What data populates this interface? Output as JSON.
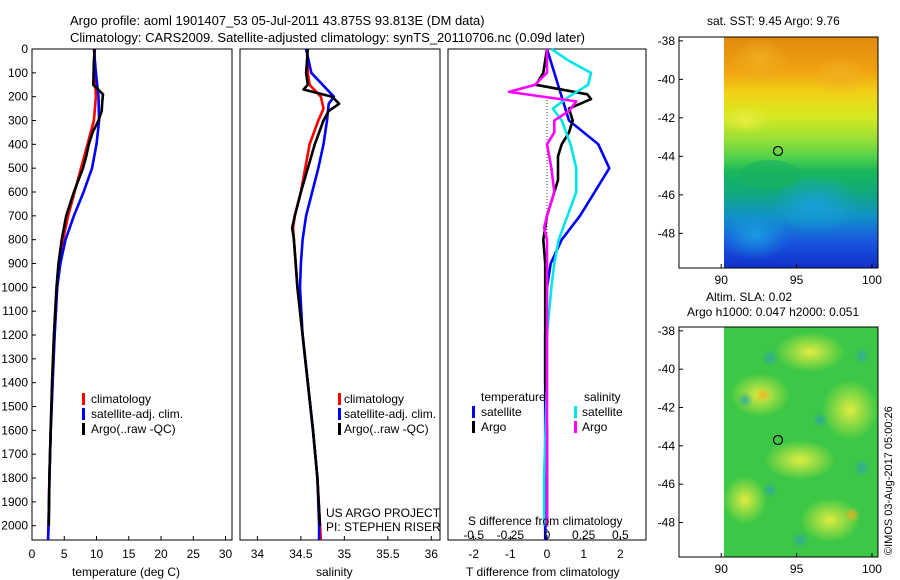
{
  "title_line1": "Argo profile: aoml 1901407_53 05-Jul-2011 43.875S 93.813E (DM data)",
  "title_line2": "Climatology: CARS2009. Satellite-adjusted climatology: synTS_20110706.nc (0.09d later)",
  "colors": {
    "climatology": "#ff0000",
    "satellite": "#0000ff",
    "argo": "#000000",
    "sal_satellite": "#00e5e5",
    "sal_argo": "#ff00ff"
  },
  "chart_data": [
    {
      "type": "line",
      "panel": "temperature",
      "xlabel": "temperature (deg C)",
      "xlim": [
        0,
        31
      ],
      "xticks": [
        0,
        5,
        10,
        15,
        20,
        25,
        30
      ],
      "ylim": [
        2060,
        0
      ],
      "yticks": [
        0,
        100,
        200,
        300,
        400,
        500,
        600,
        700,
        800,
        900,
        1000,
        1100,
        1200,
        1300,
        1400,
        1500,
        1600,
        1700,
        1800,
        1900,
        2000
      ],
      "legend": [
        "climatology",
        "satellite-adj. clim.",
        "Argo(..raw -QC)"
      ],
      "series": [
        {
          "name": "climatology",
          "depth": [
            0,
            100,
            200,
            300,
            400,
            500,
            600,
            700,
            800,
            900,
            1000,
            1200,
            1400,
            1600,
            1800,
            2000,
            2060
          ],
          "values": [
            9.7,
            9.7,
            9.9,
            9.6,
            8.6,
            7.6,
            6.6,
            5.6,
            4.8,
            4.3,
            3.9,
            3.5,
            3.2,
            2.9,
            2.7,
            2.55,
            2.5
          ]
        },
        {
          "name": "satellite-adj. clim.",
          "depth": [
            0,
            100,
            200,
            300,
            400,
            500,
            600,
            700,
            800,
            900,
            1000,
            1200,
            1400,
            1600,
            1800,
            2000,
            2060
          ],
          "values": [
            9.6,
            9.9,
            10.3,
            10.4,
            10.0,
            9.3,
            8.0,
            6.5,
            5.2,
            4.4,
            3.9,
            3.5,
            3.2,
            2.9,
            2.7,
            2.55,
            2.5
          ]
        },
        {
          "name": "Argo(..raw -QC)",
          "depth": [
            0,
            50,
            150,
            190,
            220,
            260,
            300,
            350,
            400,
            450,
            500,
            600,
            700,
            800,
            900,
            1000,
            1200,
            1400,
            1600,
            1800,
            2000
          ],
          "values": [
            9.7,
            9.6,
            9.5,
            11.0,
            10.9,
            10.8,
            10.3,
            9.4,
            8.8,
            8.4,
            7.9,
            6.5,
            5.3,
            4.6,
            4.1,
            3.8,
            3.4,
            3.1,
            2.9,
            2.7,
            2.6
          ]
        }
      ]
    },
    {
      "type": "line",
      "panel": "salinity",
      "xlabel": "salinity",
      "xlim": [
        33.8,
        36.1
      ],
      "xticks": [
        34,
        34.5,
        35,
        35.5,
        36
      ],
      "ylim": [
        2060,
        0
      ],
      "legend": [
        "climatology",
        "satellite-adj. clim.",
        "Argo(..raw -QC)"
      ],
      "annotation": [
        "US ARGO PROJECT",
        "PI: STEPHEN RISER"
      ],
      "series": [
        {
          "name": "climatology",
          "depth": [
            0,
            100,
            150,
            200,
            250,
            300,
            400,
            500,
            600,
            700,
            750,
            800,
            900,
            1000,
            1200,
            1400,
            1600,
            1800,
            2000,
            2060
          ],
          "values": [
            34.57,
            34.58,
            34.6,
            34.73,
            34.76,
            34.7,
            34.6,
            34.55,
            34.5,
            34.43,
            34.41,
            34.42,
            34.44,
            34.46,
            34.52,
            34.58,
            34.64,
            34.69,
            34.72,
            34.73
          ]
        },
        {
          "name": "satellite-adj. clim.",
          "depth": [
            0,
            100,
            200,
            230,
            300,
            400,
            500,
            600,
            700,
            800,
            900,
            1000,
            1200,
            1400,
            1600,
            1800,
            2000,
            2060
          ],
          "values": [
            34.56,
            34.62,
            34.88,
            34.82,
            34.8,
            34.76,
            34.7,
            34.63,
            34.56,
            34.52,
            34.5,
            34.49,
            34.52,
            34.58,
            34.64,
            34.69,
            34.71,
            34.71
          ]
        },
        {
          "name": "Argo(..raw -QC)",
          "depth": [
            0,
            50,
            100,
            150,
            170,
            200,
            230,
            260,
            300,
            400,
            500,
            600,
            700,
            750,
            800,
            900,
            1000,
            1200,
            1400,
            1600,
            1800,
            2000
          ],
          "values": [
            34.58,
            34.57,
            34.56,
            34.58,
            34.53,
            34.86,
            34.94,
            34.82,
            34.76,
            34.66,
            34.58,
            34.5,
            34.43,
            34.4,
            34.42,
            34.44,
            34.46,
            34.52,
            34.58,
            34.64,
            34.69,
            34.72
          ]
        }
      ]
    },
    {
      "type": "line",
      "panel": "difference",
      "xlabel": "T difference from climatology",
      "xlabel_top": "S difference from climatology",
      "xlim": [
        -2.7,
        2.7
      ],
      "xticks_T": [
        -2,
        -1,
        0,
        1,
        2
      ],
      "xticks_S": [
        "-0.5",
        "-0.25",
        "0",
        "0.25",
        "0.5"
      ],
      "ylim": [
        2060,
        0
      ],
      "legend_headers": [
        "temperature",
        "salinity"
      ],
      "legend": [
        "satellite",
        "Argo",
        "satellite",
        "Argo"
      ],
      "series": [
        {
          "name": "satellite",
          "group": "temperature",
          "depth": [
            0,
            100,
            200,
            300,
            400,
            500,
            600,
            700,
            800,
            900,
            1000,
            1200,
            1400,
            1600,
            1800,
            2000,
            2060
          ],
          "values": [
            0.0,
            0.2,
            0.4,
            0.6,
            1.4,
            1.7,
            1.3,
            0.9,
            0.4,
            0.1,
            0.0,
            -0.05,
            -0.05,
            -0.05,
            -0.05,
            -0.05,
            -0.05
          ]
        },
        {
          "name": "Argo",
          "group": "temperature",
          "depth": [
            0,
            100,
            150,
            190,
            210,
            250,
            300,
            350,
            400,
            450,
            500,
            550,
            600,
            650,
            700,
            800,
            900,
            1000,
            1200,
            1400,
            1600,
            1800,
            2000
          ],
          "values": [
            0.0,
            -0.1,
            -0.3,
            1.1,
            1.2,
            0.6,
            0.7,
            0.6,
            0.4,
            0.3,
            0.3,
            0.3,
            0.2,
            0.1,
            0.0,
            -0.1,
            -0.05,
            -0.05,
            -0.05,
            -0.05,
            0.0,
            0.0,
            0.0
          ]
        },
        {
          "name": "satellite",
          "group": "salinity",
          "depth": [
            0,
            50,
            100,
            150,
            200,
            250,
            300,
            400,
            500,
            600,
            700,
            800,
            900,
            1000,
            1200,
            1400,
            1600,
            1800,
            2000
          ],
          "values": [
            0.03,
            0.15,
            0.3,
            0.28,
            0.15,
            0.04,
            0.1,
            0.16,
            0.2,
            0.2,
            0.14,
            0.08,
            0.05,
            0.03,
            0.0,
            0.0,
            -0.01,
            -0.02,
            -0.02
          ]
        },
        {
          "name": "Argo",
          "group": "salinity",
          "depth": [
            0,
            50,
            100,
            130,
            150,
            180,
            220,
            260,
            300,
            350,
            400,
            500,
            600,
            700,
            750,
            800,
            900,
            1000,
            1200,
            1400,
            1600,
            1800,
            2000
          ],
          "values": [
            0.0,
            0.0,
            0.0,
            -0.05,
            -0.08,
            -0.26,
            0.2,
            0.15,
            0.05,
            0.05,
            0.0,
            0.03,
            0.05,
            0.0,
            -0.02,
            0.0,
            0.0,
            0.0,
            0.0,
            0.0,
            0.0,
            0.0,
            0.0
          ]
        }
      ]
    },
    {
      "type": "heatmap",
      "panel": "sst-map",
      "title": "sat. SST: 9.45 Argo: 9.76",
      "xticks": [
        90,
        95,
        100
      ],
      "yticks": [
        -38,
        -40,
        -42,
        -44,
        -46,
        -48
      ],
      "xlim": [
        87.2,
        100.4
      ],
      "ylim": [
        -49.8,
        -37.8
      ],
      "marker": {
        "lon": 93.813,
        "lat": -43.875
      }
    },
    {
      "type": "heatmap",
      "panel": "sla-map",
      "title_line1": "Altim. SLA: 0.02",
      "title_line2": "Argo h1000: 0.047 h2000: 0.051",
      "xticks": [
        90,
        95,
        100
      ],
      "yticks": [
        -38,
        -40,
        -42,
        -44,
        -46,
        -48
      ],
      "xlim": [
        87.2,
        100.4
      ],
      "ylim": [
        -49.8,
        -37.8
      ],
      "marker": {
        "lon": 93.813,
        "lat": -43.875
      }
    }
  ],
  "credit": "©IMOS 03-Aug-2017 05:00:26"
}
